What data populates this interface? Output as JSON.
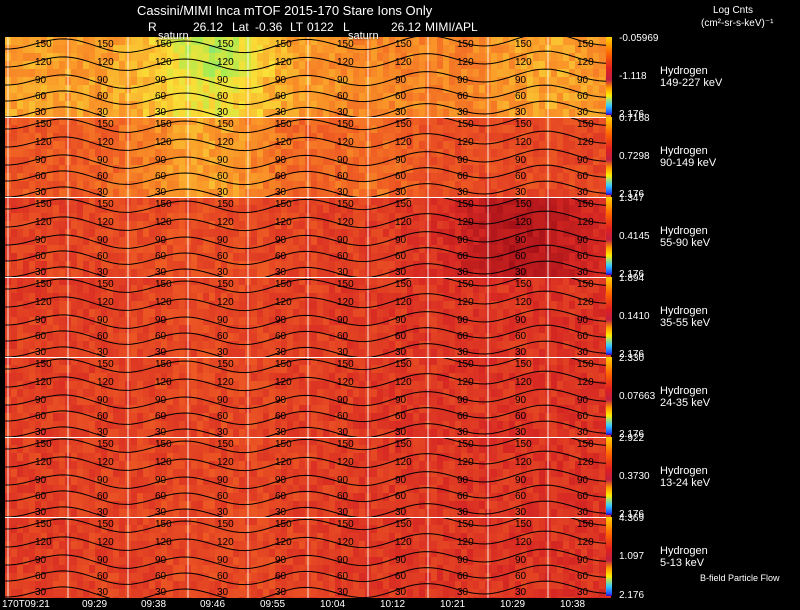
{
  "header": {
    "title": "Cassini/MIMI Inca mTOF  2015-170   Stare   Ions Only",
    "r_label": "R",
    "r_value": "26.12",
    "lat_label": "Lat",
    "lat_value": "-0.36",
    "lt_label": "LT",
    "lt_value": "0122",
    "l_label": "L",
    "l_value": "26.12",
    "credit": "MIMI/APL",
    "units_line1": "Log Cnts",
    "units_line2": "(cm²-sr-s-keV)⁻¹"
  },
  "overlay_labels": {
    "saturn_1": "saturn",
    "saturn_2": "saturn"
  },
  "chart_data": {
    "type": "heatmap",
    "title": "Cassini/MIMI Inca mTOF 2015-170 Stare Ions Only",
    "x_ticks": [
      "170T09:21",
      "09:29",
      "09:38",
      "09:46",
      "09:55",
      "10:04",
      "10:12",
      "10:21",
      "10:29",
      "10:38"
    ],
    "contour_levels": [
      "30",
      "60",
      "90",
      "120",
      "150"
    ],
    "panels": [
      {
        "species": "Hydrogen",
        "energy": "149-227 keV",
        "max": "-0.05969",
        "mid": "-1.118",
        "min": "2.176",
        "mean_level": 0.55
      },
      {
        "species": "Hydrogen",
        "energy": "90-149 keV",
        "max": "0.7168",
        "mid": "0.7298",
        "min": "2.176",
        "mean_level": 0.72
      },
      {
        "species": "Hydrogen",
        "energy": "55-90 keV",
        "max": "1.347",
        "mid": "0.4145",
        "min": "2.176",
        "mean_level": 0.86
      },
      {
        "species": "Hydrogen",
        "energy": "35-55 keV",
        "max": "1.894",
        "mid": "0.1410",
        "min": "2.176",
        "mean_level": 0.84
      },
      {
        "species": "Hydrogen",
        "energy": "24-35 keV",
        "max": "2.330",
        "mid": "0.07663",
        "min": "2.176",
        "mean_level": 0.83
      },
      {
        "species": "Hydrogen",
        "energy": "13-24 keV",
        "max": "2.922",
        "mid": "0.3730",
        "min": "2.176",
        "mean_level": 0.85
      },
      {
        "species": "Hydrogen",
        "energy": "5-13 keV",
        "max": "4.369",
        "mid": "1.097",
        "min": "2.176",
        "mean_level": 0.84
      }
    ],
    "footer_label": "B-field Particle Flow"
  },
  "colors": {
    "background": "#000000",
    "grid": "#ffffff",
    "contour": "#000000"
  }
}
